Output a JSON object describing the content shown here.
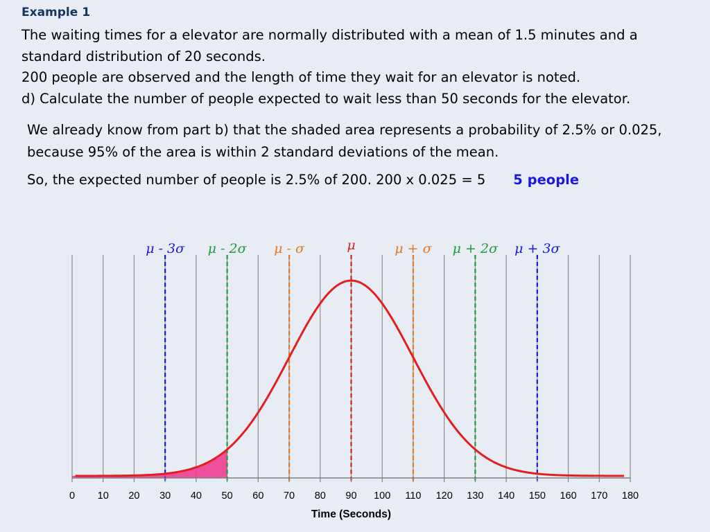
{
  "heading": "Example 1",
  "question": {
    "line1": "The waiting times for a elevator are normally distributed with a mean of 1.5 minutes and a",
    "line2": "standard distribution of 20 seconds.",
    "line3": "200 people are observed and the length of time they wait for an elevator is noted.",
    "line4": "d)   Calculate the number of people expected to wait less than 50 seconds for the elevator."
  },
  "answer": {
    "line1": "We already know from part b) that the shaded area represents a probability of 2.5% or 0.025,",
    "line2": "because 95% of the area is within 2 standard deviations of the mean.",
    "line3": "So, the expected number of people is 2.5% of 200.   200 x 0.025 = 5",
    "result": "5 people"
  },
  "chart_data": {
    "type": "line",
    "xlabel": "Time (Seconds)",
    "xlim": [
      0,
      180
    ],
    "x_ticks": [
      0,
      10,
      20,
      30,
      40,
      50,
      60,
      70,
      80,
      90,
      100,
      110,
      120,
      130,
      140,
      150,
      160,
      170,
      180
    ],
    "distribution": {
      "kind": "normal",
      "mean": 90,
      "sd": 20
    },
    "curve_color": "#e31e1e",
    "shaded_region": {
      "from": 0,
      "to": 50,
      "color": "#ee3e95"
    },
    "reference_lines": [
      {
        "x": 30,
        "label": "μ - 3σ",
        "color": "#1a1ad6"
      },
      {
        "x": 50,
        "label": "μ - 2σ",
        "color": "#1a9c3c"
      },
      {
        "x": 70,
        "label": "μ - σ",
        "color": "#e8771a"
      },
      {
        "x": 90,
        "label": "μ",
        "color": "#d42020"
      },
      {
        "x": 110,
        "label": "μ + σ",
        "color": "#e8771a"
      },
      {
        "x": 130,
        "label": "μ + 2σ",
        "color": "#1a9c3c"
      },
      {
        "x": 150,
        "label": "μ + 3σ",
        "color": "#1a1ad6"
      }
    ],
    "grid": true
  }
}
